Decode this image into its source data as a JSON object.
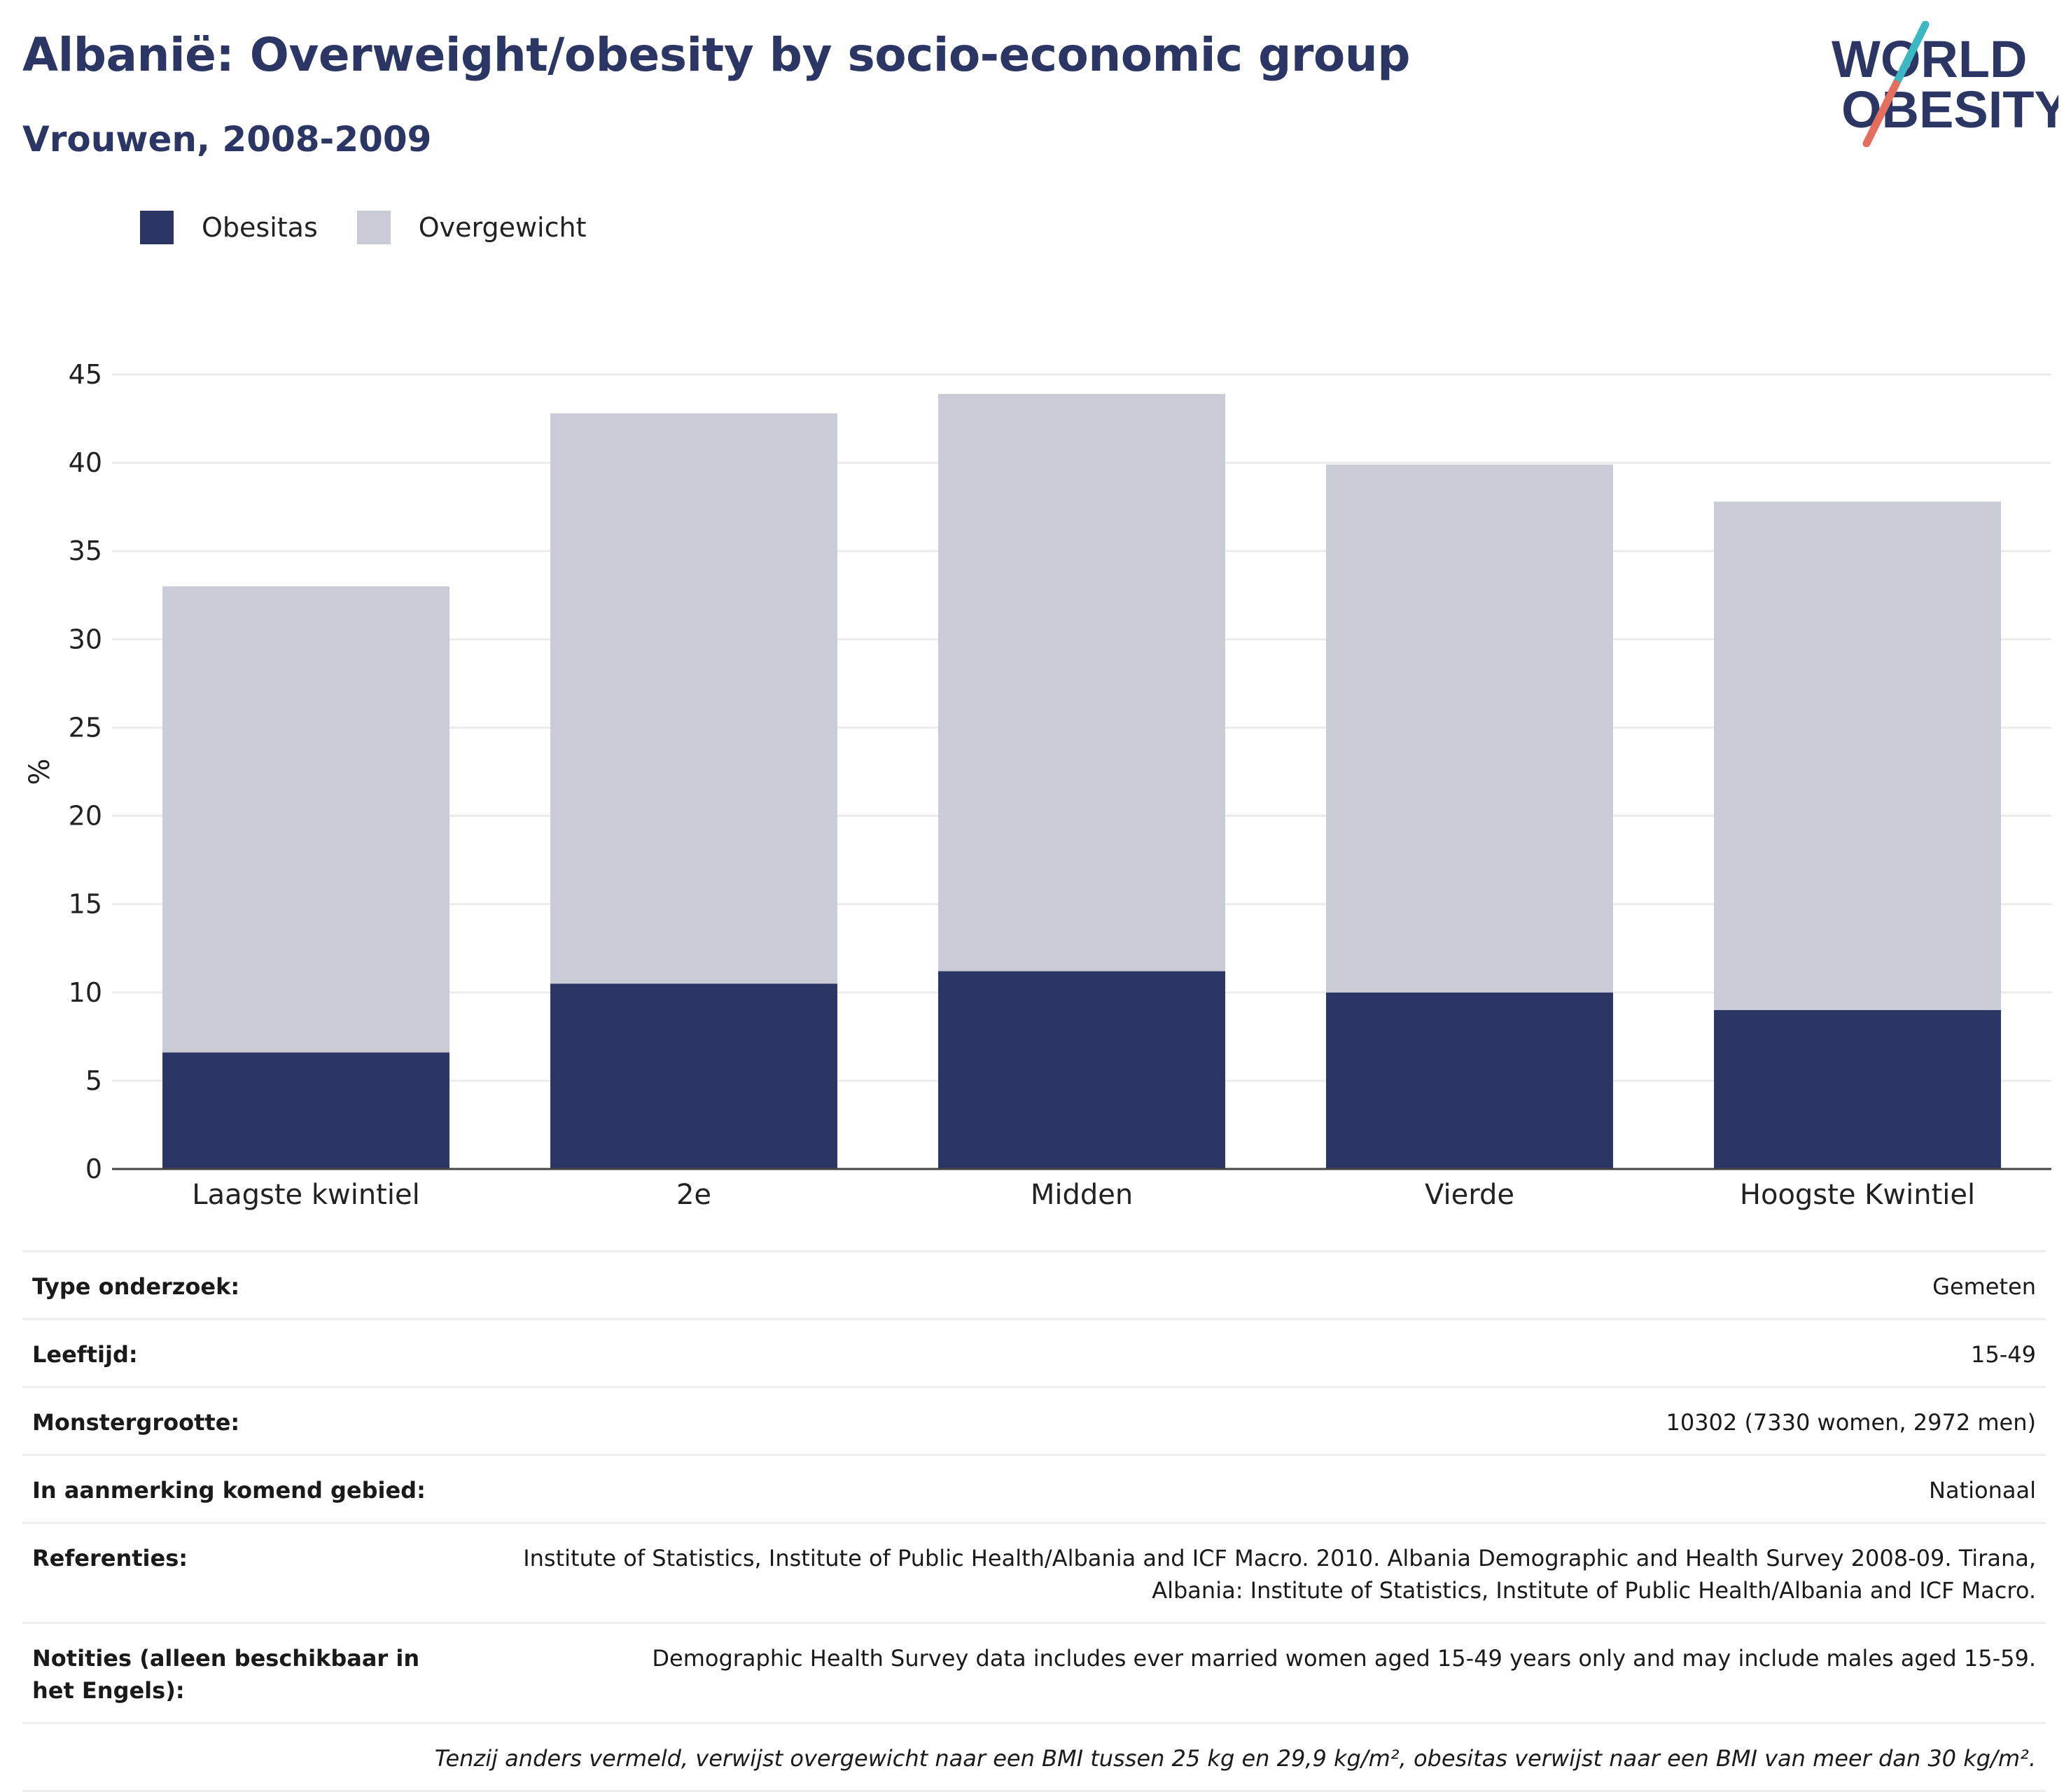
{
  "header": {
    "title": "Albanië: Overweight/obesity by socio-economic group",
    "subtitle": "Vrouwen, 2008-2009"
  },
  "logo": {
    "line1": "WORLD",
    "line2": "OBESITY",
    "icon": "world-obesity-logo"
  },
  "legend": [
    {
      "label": "Obesitas",
      "color": "#2b3664"
    },
    {
      "label": "Overgewicht",
      "color": "#c9cbd7"
    }
  ],
  "chart_data": {
    "type": "bar",
    "stacked": true,
    "categories": [
      "Laagste kwintiel",
      "2e",
      "Midden",
      "Vierde",
      "Hoogste Kwintiel"
    ],
    "series": [
      {
        "name": "Obesitas",
        "color": "#2b3664",
        "values": [
          6.6,
          10.5,
          11.2,
          10.0,
          9.0
        ]
      },
      {
        "name": "Overgewicht",
        "color": "#c9cbd7",
        "values": [
          26.4,
          32.3,
          32.7,
          29.9,
          28.8
        ]
      }
    ],
    "totals": [
      33.0,
      42.8,
      43.9,
      39.9,
      37.8
    ],
    "ylabel": "%",
    "ylim": [
      0,
      45
    ],
    "yticks": [
      0,
      5,
      10,
      15,
      20,
      25,
      30,
      35,
      40,
      45
    ],
    "grid": true
  },
  "info": {
    "rows": [
      {
        "key": "Type onderzoek:",
        "value": "Gemeten"
      },
      {
        "key": "Leeftijd:",
        "value": "15-49"
      },
      {
        "key": "Monstergrootte:",
        "value": "10302 (7330 women, 2972 men)"
      },
      {
        "key": "In aanmerking komend gebied:",
        "value": "Nationaal"
      },
      {
        "key": "Referenties:",
        "value": "Institute of Statistics, Institute of Public Health/Albania and ICF Macro. 2010. Albania Demographic and Health Survey 2008-09. Tirana, Albania: Institute of Statistics, Institute of Public Health/Albania and ICF Macro."
      },
      {
        "key": "Notities (alleen beschikbaar in het Engels):",
        "value": "Demographic Health Survey data includes ever married women aged 15-49 years only and may include males aged 15-59."
      }
    ],
    "footnote": "Tenzij anders vermeld, verwijst overgewicht naar een BMI tussen 25 kg en 29,9 kg/m², obesitas verwijst naar een BMI van meer dan 30 kg/m²."
  }
}
